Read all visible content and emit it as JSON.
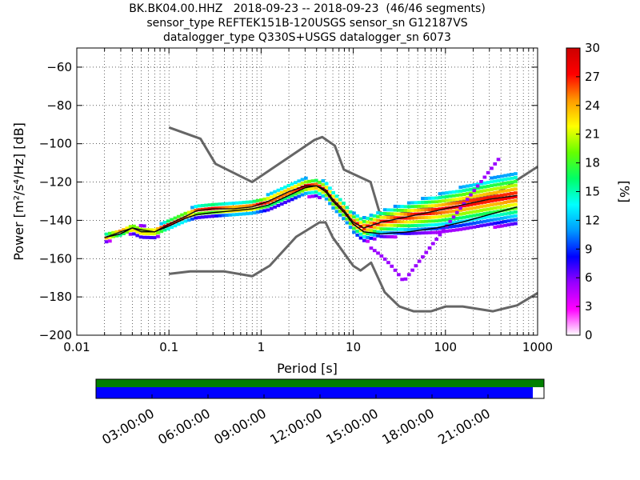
{
  "title": {
    "line1": "BK.BK04.00.HHZ   2018-09-23 -- 2018-09-23  (46/46 segments)",
    "line2": "sensor_type REFTEK151B-120USGS sensor_sn G12187VS",
    "line3": "datalogger_type Q330S+USGS datalogger_sn 6073"
  },
  "chart_data": {
    "type": "heatmap",
    "xlabel": "Period [s]",
    "ylabel": "Power [m²/s⁴/Hz] [dB]",
    "x_scale": "log",
    "xlim": [
      0.01,
      1000
    ],
    "ylim": [
      -200,
      -50
    ],
    "x_ticks": [
      0.01,
      0.1,
      1,
      10,
      100,
      1000
    ],
    "x_tick_labels": [
      "0.01",
      "0.1",
      "1",
      "10",
      "100",
      "1000"
    ],
    "y_ticks": [
      -200,
      -180,
      -160,
      -140,
      -120,
      -100,
      -80,
      -60
    ],
    "y_tick_labels": [
      "−200",
      "−180",
      "−160",
      "−140",
      "−120",
      "−100",
      "−80",
      "−60"
    ],
    "colorbar": {
      "label": "[%]",
      "range": [
        0,
        30
      ],
      "ticks": [
        0,
        3,
        6,
        9,
        12,
        15,
        18,
        21,
        24,
        27,
        30
      ],
      "colormap": [
        "#ffffff",
        "#ff00ff",
        "#9900ff",
        "#0000ff",
        "#0099ff",
        "#00ffff",
        "#00ff66",
        "#66ff00",
        "#ffff00",
        "#ff9900",
        "#ff0000",
        "#cc0000"
      ]
    },
    "noise_model_high": {
      "period": [
        0.1,
        0.22,
        0.32,
        0.8,
        3.8,
        4.6,
        6.3,
        7.9,
        15.4,
        20,
        354.8,
        1000
      ],
      "power": [
        -91.5,
        -97.4,
        -110.5,
        -120,
        -98,
        -96.5,
        -101,
        -113.5,
        -120,
        -138.5,
        -126,
        -112
      ]
    },
    "noise_model_low": {
      "period": [
        0.1,
        0.17,
        0.4,
        0.8,
        1.24,
        2.4,
        4.3,
        5,
        6,
        10,
        12,
        15.6,
        21.9,
        31.6,
        45,
        70,
        101,
        154,
        328,
        600,
        1000
      ],
      "power": [
        -168,
        -166.7,
        -166.7,
        -169.2,
        -163.7,
        -148.6,
        -141.1,
        -141.1,
        -149,
        -163.8,
        -166.2,
        -162.1,
        -177.5,
        -185,
        -187.5,
        -187.5,
        -185,
        -185,
        -187.5,
        -184.4,
        -178
      ]
    },
    "mean_curve": {
      "period": [
        0.02,
        0.03,
        0.04,
        0.05,
        0.07,
        0.1,
        0.15,
        0.2,
        0.3,
        0.5,
        0.8,
        1.2,
        2,
        3,
        4,
        5,
        6,
        8,
        10,
        13,
        20,
        40,
        80,
        150,
        300,
        600
      ],
      "power": [
        -149,
        -147,
        -144,
        -145,
        -146,
        -143,
        -139,
        -137,
        -136,
        -135,
        -134,
        -132,
        -127,
        -123,
        -122,
        -125,
        -130,
        -136,
        -142,
        -146,
        -147,
        -146,
        -144,
        -141,
        -137,
        -133
      ]
    },
    "mode_curve": {
      "period": [
        0.02,
        0.03,
        0.04,
        0.05,
        0.07,
        0.1,
        0.15,
        0.2,
        0.3,
        0.5,
        0.8,
        1.2,
        2,
        3,
        4,
        5,
        6,
        8,
        10,
        13,
        20,
        40,
        80,
        150,
        300,
        600
      ],
      "power": [
        -149,
        -146,
        -144,
        -146,
        -146,
        -142,
        -138,
        -135,
        -134,
        -134,
        -133,
        -130,
        -125,
        -122,
        -122,
        -124,
        -129,
        -135,
        -141,
        -144,
        -141,
        -138,
        -135,
        -132,
        -129,
        -127
      ]
    },
    "timeline": {
      "time_tick_labels": [
        "03:00:00",
        "06:00:00",
        "09:00:00",
        "12:00:00",
        "15:00:00",
        "18:00:00",
        "21:00:00"
      ],
      "time_ticks_hours": [
        3,
        6,
        9,
        12,
        15,
        18,
        21
      ],
      "range_hours": [
        0,
        24
      ],
      "data_coverage_end_fraction": 0.975,
      "top_bar_color": "#008000",
      "bottom_bar_color": "#0000ff"
    }
  }
}
